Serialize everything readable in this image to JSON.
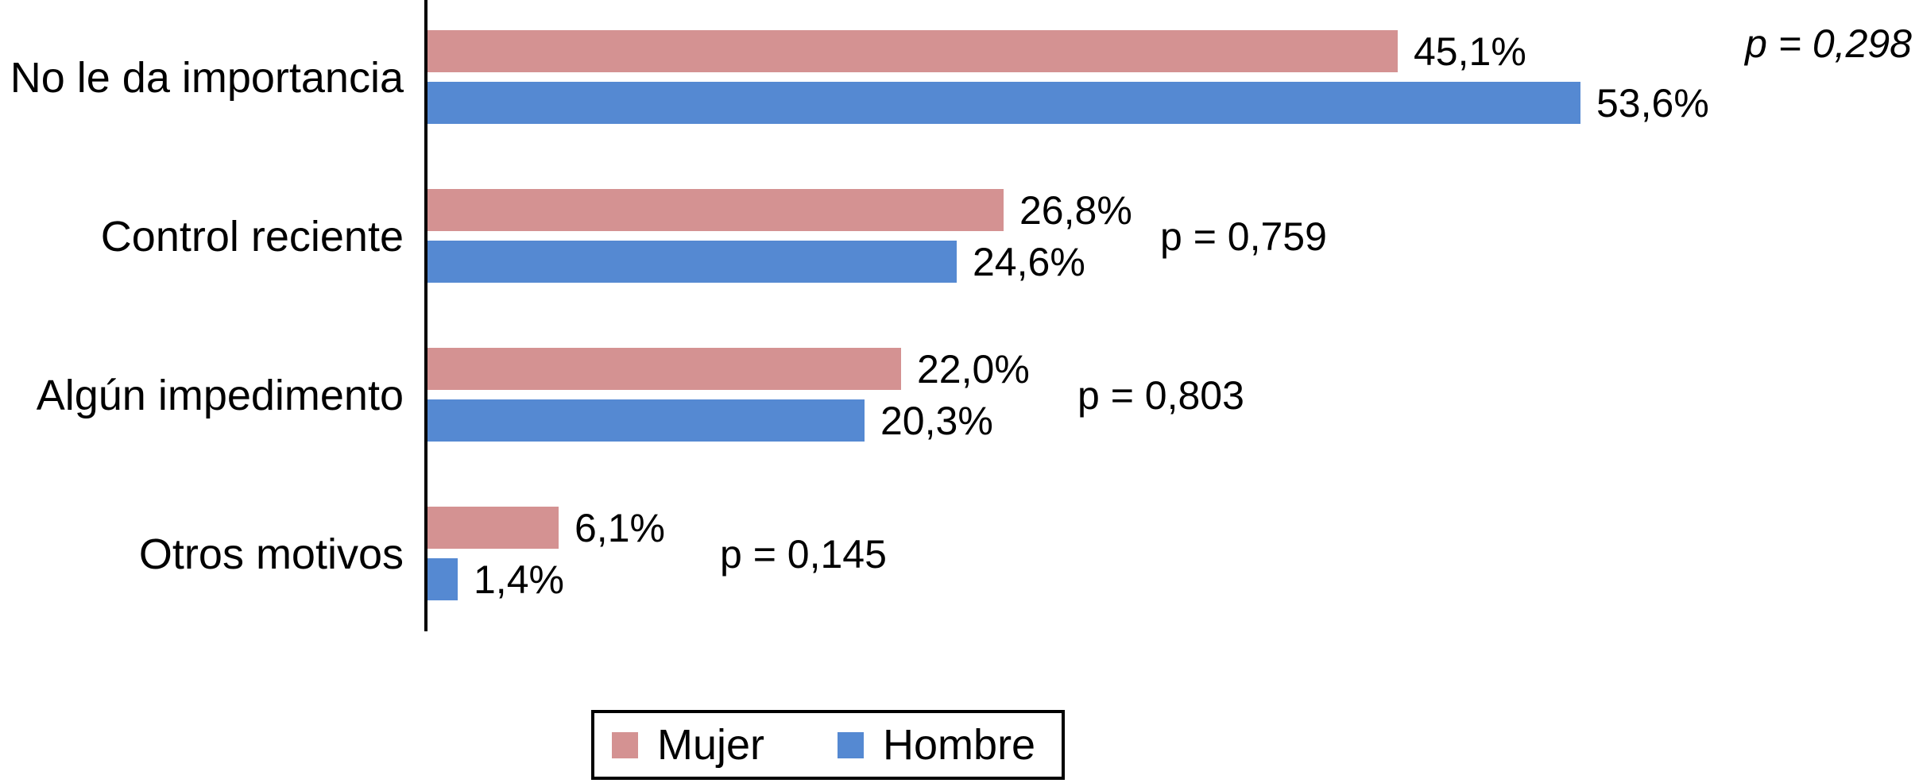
{
  "chart_data": {
    "type": "bar",
    "orientation": "horizontal",
    "title": "",
    "categories": [
      "No le da importancia",
      "Control reciente",
      "Algún impedimento",
      "Otros motivos"
    ],
    "series": [
      {
        "name": "Mujer",
        "color": "#D49292",
        "values": [
          45.1,
          26.8,
          22.0,
          6.1
        ],
        "labels": [
          "45,1%",
          "26,8%",
          "22,0%",
          "6,1%"
        ]
      },
      {
        "name": "Hombre",
        "color": "#5589D2",
        "values": [
          53.6,
          24.6,
          20.3,
          1.4
        ],
        "labels": [
          "53,6%",
          "24,6%",
          "20,3%",
          "1,4%"
        ]
      }
    ],
    "p_values": [
      "p = 0,298",
      "p = 0,759",
      "p = 0,803",
      "p = 0,145"
    ],
    "xlim": [
      0,
      69
    ],
    "grid": false,
    "legend_position": "bottom",
    "axis_color": "#000000",
    "text_color": "#000000"
  }
}
